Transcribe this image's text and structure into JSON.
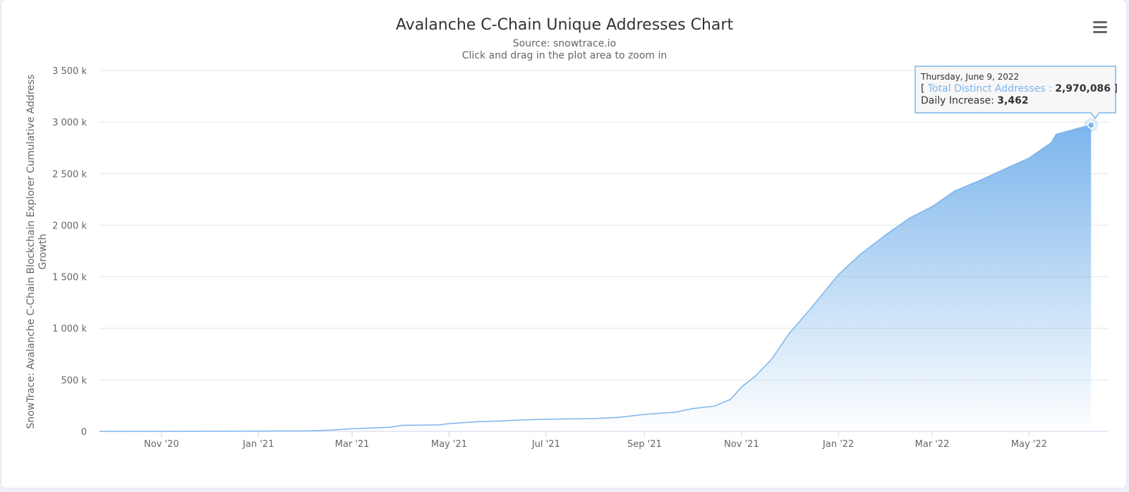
{
  "colors": {
    "series": "#7cb5ec",
    "grid": "#e6e6e6",
    "text": "#333333",
    "axis_text": "#666666",
    "axis_line": "#ccd6eb"
  },
  "menu": {
    "icon": "hamburger-menu-icon",
    "label": "Chart context menu"
  },
  "chart_data": {
    "type": "area",
    "title": "Avalanche C-Chain Unique Addresses Chart",
    "subtitle": "Source: snowtrace.io",
    "zoom_hint": "Click and drag in the plot area to zoom in",
    "ylabel": "SnowTrace: Avalanche C-Chain Blockchain Explorer Cumulative Address Growth",
    "ylabel_lines": [
      "SnowTrace: Avalanche C-Chain Blockchain Explorer Cumulative Address",
      "Growth"
    ],
    "xlabel": "",
    "ylim": [
      0,
      3500000
    ],
    "yticks": [
      {
        "value": 0,
        "label": "0"
      },
      {
        "value": 500000,
        "label": "500 k"
      },
      {
        "value": 1000000,
        "label": "1 000 k"
      },
      {
        "value": 1500000,
        "label": "1 500 k"
      },
      {
        "value": 2000000,
        "label": "2 000 k"
      },
      {
        "value": 2500000,
        "label": "2 500 k"
      },
      {
        "value": 3000000,
        "label": "3 000 k"
      },
      {
        "value": 3500000,
        "label": "3 500 k"
      }
    ],
    "xlim": [
      "2020-09-23",
      "2022-06-20"
    ],
    "xticks": [
      {
        "date": "2020-11-01",
        "label": "Nov '20"
      },
      {
        "date": "2021-01-01",
        "label": "Jan '21"
      },
      {
        "date": "2021-03-01",
        "label": "Mar '21"
      },
      {
        "date": "2021-05-01",
        "label": "May '21"
      },
      {
        "date": "2021-07-01",
        "label": "Jul '21"
      },
      {
        "date": "2021-09-01",
        "label": "Sep '21"
      },
      {
        "date": "2021-11-01",
        "label": "Nov '21"
      },
      {
        "date": "2022-01-01",
        "label": "Jan '22"
      },
      {
        "date": "2022-03-01",
        "label": "Mar '22"
      },
      {
        "date": "2022-05-01",
        "label": "May '22"
      }
    ],
    "series": [
      {
        "name": "Total Distinct Addresses",
        "points": [
          [
            "2020-09-23",
            0
          ],
          [
            "2020-11-01",
            1000
          ],
          [
            "2021-01-01",
            3000
          ],
          [
            "2021-02-01",
            5000
          ],
          [
            "2021-02-15",
            12000
          ],
          [
            "2021-03-01",
            25000
          ],
          [
            "2021-03-25",
            40000
          ],
          [
            "2021-04-01",
            58000
          ],
          [
            "2021-04-25",
            63000
          ],
          [
            "2021-05-01",
            75000
          ],
          [
            "2021-05-20",
            95000
          ],
          [
            "2021-06-01",
            100000
          ],
          [
            "2021-06-15",
            110000
          ],
          [
            "2021-07-01",
            118000
          ],
          [
            "2021-08-01",
            125000
          ],
          [
            "2021-08-15",
            135000
          ],
          [
            "2021-09-01",
            165000
          ],
          [
            "2021-09-20",
            185000
          ],
          [
            "2021-10-01",
            220000
          ],
          [
            "2021-10-15",
            245000
          ],
          [
            "2021-10-25",
            310000
          ],
          [
            "2021-11-01",
            430000
          ],
          [
            "2021-11-10",
            540000
          ],
          [
            "2021-11-20",
            700000
          ],
          [
            "2021-12-01",
            950000
          ],
          [
            "2021-12-15",
            1200000
          ],
          [
            "2022-01-01",
            1520000
          ],
          [
            "2022-01-15",
            1720000
          ],
          [
            "2022-02-01",
            1920000
          ],
          [
            "2022-02-15",
            2070000
          ],
          [
            "2022-03-01",
            2180000
          ],
          [
            "2022-03-15",
            2330000
          ],
          [
            "2022-04-01",
            2440000
          ],
          [
            "2022-04-15",
            2540000
          ],
          [
            "2022-05-01",
            2650000
          ],
          [
            "2022-05-15",
            2800000
          ],
          [
            "2022-05-18",
            2880000
          ],
          [
            "2022-06-01",
            2940000
          ],
          [
            "2022-06-09",
            2970086
          ]
        ]
      }
    ],
    "tooltip": {
      "date": "Thursday, June 9, 2022",
      "series_name": "Total Distinct Addresses",
      "value": "2,970,086",
      "daily_increase_label": "Daily Increase:",
      "daily_increase": "3,462",
      "point": [
        "2022-06-09",
        2970086
      ]
    }
  }
}
